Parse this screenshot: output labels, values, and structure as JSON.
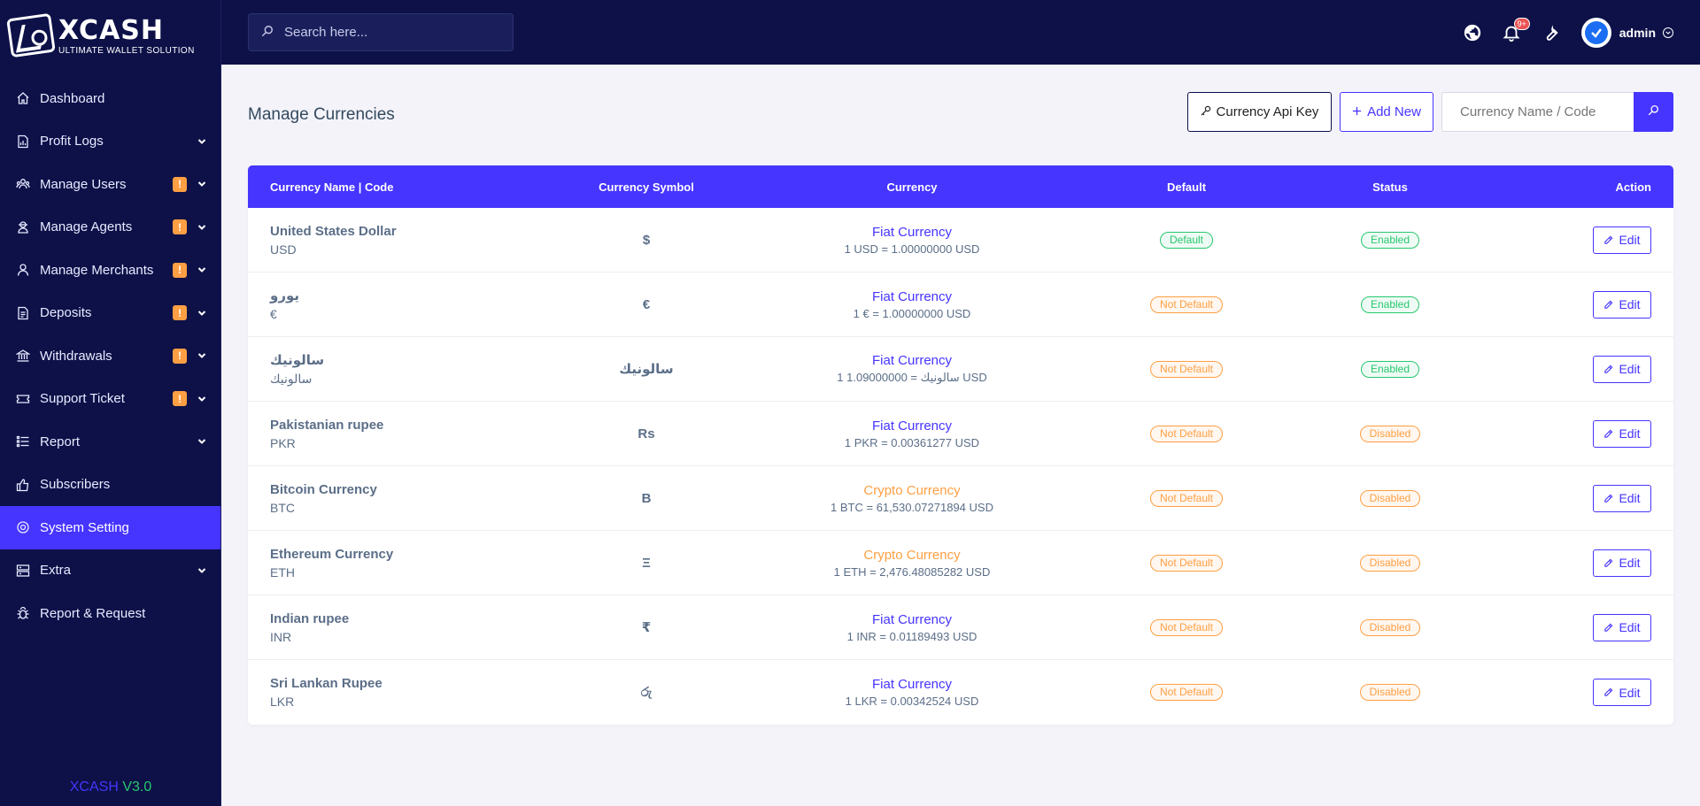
{
  "brand": {
    "title": "XCASH",
    "subtitle": "ULTIMATE WALLET SOLUTION",
    "version_name": "XCASH",
    "version_number": "V3.0"
  },
  "sidebar": {
    "items": [
      {
        "label": "Dashboard",
        "icon": "home-icon",
        "badge": "",
        "caret": false,
        "active": false
      },
      {
        "label": "Profit Logs",
        "icon": "file-chart-icon",
        "badge": "",
        "caret": true,
        "active": false
      },
      {
        "label": "Manage Users",
        "icon": "users-icon",
        "badge": "!",
        "caret": true,
        "active": false
      },
      {
        "label": "Manage Agents",
        "icon": "agent-icon",
        "badge": "!",
        "caret": true,
        "active": false
      },
      {
        "label": "Manage Merchants",
        "icon": "merchant-icon",
        "badge": "!",
        "caret": true,
        "active": false
      },
      {
        "label": "Deposits",
        "icon": "deposit-icon",
        "badge": "!",
        "caret": true,
        "active": false
      },
      {
        "label": "Withdrawals",
        "icon": "bank-icon",
        "badge": "!",
        "caret": true,
        "active": false
      },
      {
        "label": "Support Ticket",
        "icon": "ticket-icon",
        "badge": "!",
        "caret": true,
        "active": false
      },
      {
        "label": "Report",
        "icon": "list-icon",
        "badge": "",
        "caret": true,
        "active": false
      },
      {
        "label": "Subscribers",
        "icon": "thumbs-up-icon",
        "badge": "",
        "caret": false,
        "active": false
      },
      {
        "label": "System Setting",
        "icon": "gear-icon",
        "badge": "",
        "caret": false,
        "active": true
      },
      {
        "label": "Extra",
        "icon": "server-icon",
        "badge": "",
        "caret": true,
        "active": false
      },
      {
        "label": "Report & Request",
        "icon": "bug-icon",
        "badge": "",
        "caret": false,
        "active": false
      }
    ]
  },
  "topbar": {
    "search_placeholder": "Search here...",
    "notification_count": "9+",
    "admin_name": "admin"
  },
  "page": {
    "title": "Manage Currencies",
    "api_key_label": "Currency Api Key",
    "add_new_label": "Add New",
    "filter_placeholder": "Currency Name / Code"
  },
  "table": {
    "headers": {
      "name": "Currency Name | Code",
      "symbol": "Currency Symbol",
      "currency": "Currency",
      "default": "Default",
      "status": "Status",
      "action": "Action"
    },
    "rows": [
      {
        "name": "United States Dollar",
        "code": "USD",
        "symbol": "$",
        "type": "Fiat Currency",
        "rate": "1 USD = 1.00000000 USD",
        "default": "Default",
        "status": "Enabled",
        "action": "Edit"
      },
      {
        "name": "يورو",
        "code": "€",
        "symbol": "€",
        "type": "Fiat Currency",
        "rate": "1 € = 1.00000000 USD",
        "default": "Not Default",
        "status": "Enabled",
        "action": "Edit"
      },
      {
        "name": "سالونيك",
        "code": "سالونيك",
        "symbol": "سالونيك",
        "type": "Fiat Currency",
        "rate": "1 سالونيك = 1.09000000 USD",
        "default": "Not Default",
        "status": "Enabled",
        "action": "Edit"
      },
      {
        "name": "Pakistanian rupee",
        "code": "PKR",
        "symbol": "Rs",
        "type": "Fiat Currency",
        "rate": "1 PKR = 0.00361277 USD",
        "default": "Not Default",
        "status": "Disabled",
        "action": "Edit"
      },
      {
        "name": "Bitcoin Currency",
        "code": "BTC",
        "symbol": "B",
        "type": "Crypto Currency",
        "rate": "1 BTC = 61,530.07271894 USD",
        "default": "Not Default",
        "status": "Disabled",
        "action": "Edit"
      },
      {
        "name": "Ethereum Currency",
        "code": "ETH",
        "symbol": "Ξ",
        "type": "Crypto Currency",
        "rate": "1 ETH = 2,476.48085282 USD",
        "default": "Not Default",
        "status": "Disabled",
        "action": "Edit"
      },
      {
        "name": "Indian rupee",
        "code": "INR",
        "symbol": "₹",
        "type": "Fiat Currency",
        "rate": "1 INR = 0.01189493 USD",
        "default": "Not Default",
        "status": "Disabled",
        "action": "Edit"
      },
      {
        "name": "Sri Lankan Rupee",
        "code": "LKR",
        "symbol": "රු",
        "type": "Fiat Currency",
        "rate": "1 LKR = 0.00342524 USD",
        "default": "Not Default",
        "status": "Disabled",
        "action": "Edit"
      }
    ]
  },
  "colors": {
    "sidebar_bg": "#0d1148",
    "accent": "#4634ff",
    "warning": "#ff9f43",
    "success": "#28c76f"
  }
}
